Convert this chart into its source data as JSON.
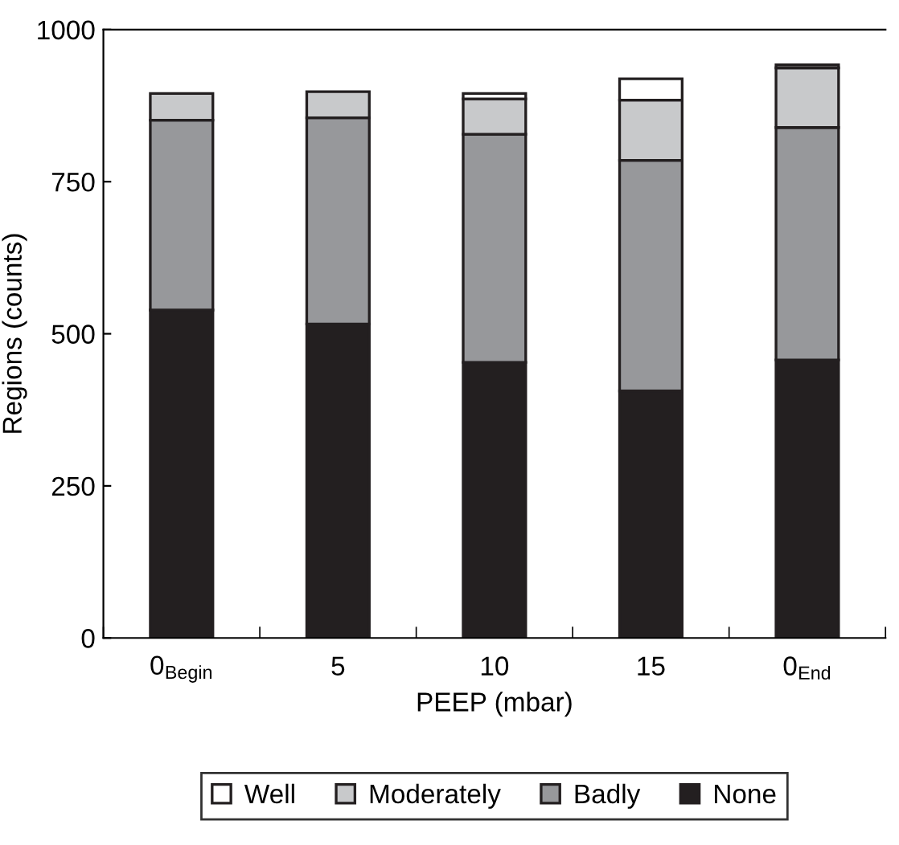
{
  "chart_data": {
    "type": "bar",
    "stacked": true,
    "xlabel": "PEEP (mbar)",
    "ylabel": "Regions (counts)",
    "categories": [
      "0$_{Begin}$",
      "5",
      "10",
      "15",
      "0$_{End}$"
    ],
    "series": [
      {
        "name": "None",
        "color": "#231f20",
        "values": [
          539,
          516,
          453,
          406,
          457
        ]
      },
      {
        "name": "Badly",
        "color": "#97989b",
        "values": [
          312,
          339,
          375,
          379,
          382
        ]
      },
      {
        "name": "Moderately",
        "color": "#c8c9cb",
        "values": [
          44,
          43,
          58,
          99,
          98
        ]
      },
      {
        "name": "Well",
        "color": "#ffffff",
        "values": [
          null,
          null,
          9,
          35,
          5
        ]
      }
    ],
    "ylim": [
      0,
      1000
    ],
    "yticks": [
      0,
      250,
      500,
      750,
      1000
    ],
    "grid": false,
    "legend": "bottom"
  }
}
